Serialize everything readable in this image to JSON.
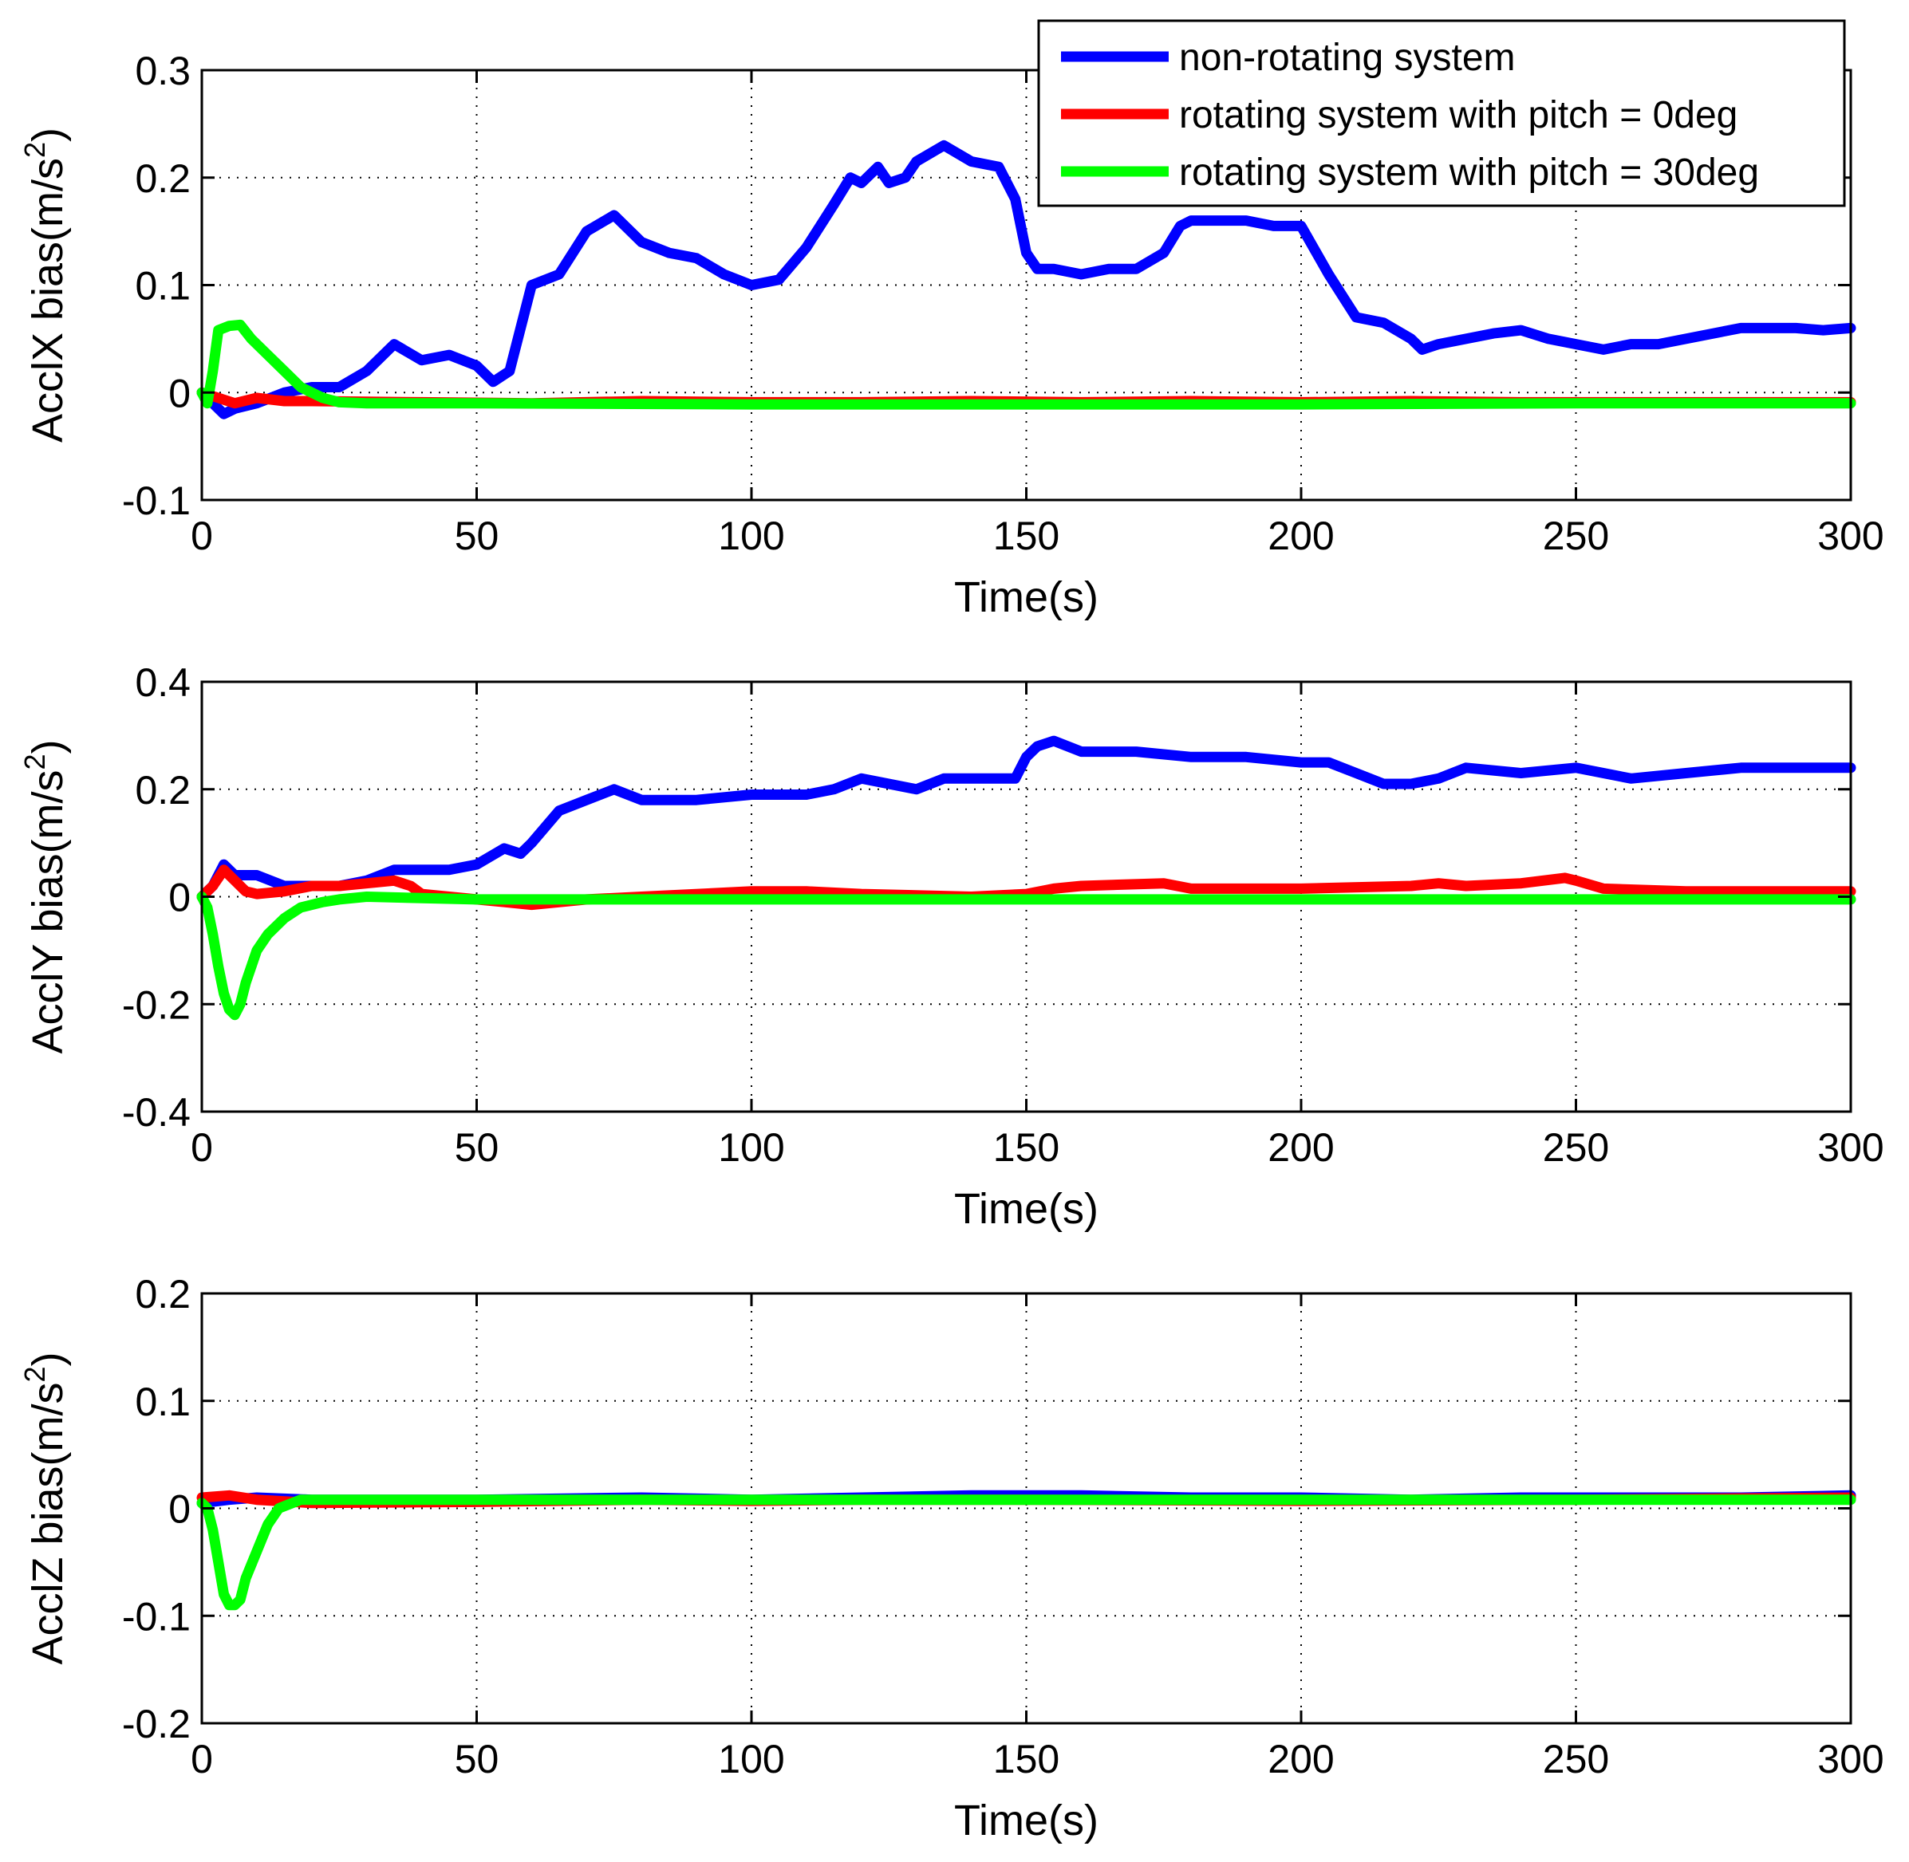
{
  "chart_data": [
    {
      "type": "line",
      "name": "accx",
      "xlabel": "Time(s)",
      "ylabel_main": "AcclX bias(m/s",
      "ylabel_sup": "2",
      "ylabel_close": ")",
      "xlim": [
        0,
        300
      ],
      "ylim": [
        -0.1,
        0.3
      ],
      "xticks": [
        0,
        50,
        100,
        150,
        200,
        250,
        300
      ],
      "xtick_labels": [
        "0",
        "50",
        "100",
        "150",
        "200",
        "250",
        "300"
      ],
      "yticks": [
        -0.1,
        0,
        0.1,
        0.2,
        0.3
      ],
      "ytick_labels": [
        "-0.1",
        "0",
        "0.1",
        "0.2",
        "0.3"
      ],
      "grid": true,
      "legend": {
        "placement": "top-right",
        "entries": [
          "non-rotating system",
          "rotating system with pitch = 0deg",
          "rotating system with pitch = 30deg"
        ]
      },
      "series": [
        {
          "name": "non-rotating system",
          "color": "#0000ff",
          "x": [
            0,
            2,
            4,
            6,
            10,
            15,
            20,
            25,
            30,
            35,
            40,
            45,
            50,
            53,
            56,
            58,
            60,
            65,
            70,
            75,
            80,
            85,
            90,
            95,
            100,
            105,
            110,
            115,
            118,
            120,
            123,
            125,
            128,
            130,
            135,
            140,
            145,
            148,
            150,
            152,
            155,
            160,
            165,
            170,
            175,
            178,
            180,
            185,
            190,
            195,
            200,
            205,
            210,
            215,
            220,
            222,
            225,
            230,
            235,
            240,
            245,
            250,
            255,
            260,
            265,
            270,
            275,
            280,
            285,
            290,
            295,
            300
          ],
          "y": [
            0,
            -0.01,
            -0.02,
            -0.015,
            -0.01,
            0.0,
            0.005,
            0.005,
            0.02,
            0.045,
            0.03,
            0.035,
            0.025,
            0.01,
            0.02,
            0.06,
            0.1,
            0.11,
            0.15,
            0.165,
            0.14,
            0.13,
            0.125,
            0.11,
            0.1,
            0.105,
            0.135,
            0.175,
            0.2,
            0.195,
            0.21,
            0.195,
            0.2,
            0.215,
            0.23,
            0.215,
            0.21,
            0.18,
            0.13,
            0.115,
            0.115,
            0.11,
            0.115,
            0.115,
            0.13,
            0.155,
            0.16,
            0.16,
            0.16,
            0.155,
            0.155,
            0.11,
            0.07,
            0.065,
            0.05,
            0.04,
            0.045,
            0.05,
            0.055,
            0.058,
            0.05,
            0.045,
            0.04,
            0.045,
            0.045,
            0.05,
            0.055,
            0.06,
            0.06,
            0.06,
            0.058,
            0.06
          ]
        },
        {
          "name": "rotating system with pitch = 0deg",
          "color": "#ff0000",
          "x": [
            0,
            3,
            6,
            10,
            15,
            20,
            40,
            60,
            80,
            100,
            120,
            140,
            160,
            180,
            200,
            220,
            240,
            260,
            280,
            300
          ],
          "y": [
            0,
            -0.005,
            -0.01,
            -0.005,
            -0.008,
            -0.008,
            -0.009,
            -0.01,
            -0.008,
            -0.009,
            -0.009,
            -0.008,
            -0.009,
            -0.008,
            -0.009,
            -0.008,
            -0.009,
            -0.009,
            -0.009,
            -0.009
          ]
        },
        {
          "name": "rotating system with pitch = 30deg",
          "color": "#00ff00",
          "x": [
            0,
            1,
            2,
            3,
            5,
            7,
            9,
            12,
            15,
            18,
            22,
            25,
            30,
            50,
            100,
            150,
            200,
            250,
            300
          ],
          "y": [
            0,
            -0.01,
            0.02,
            0.058,
            0.062,
            0.063,
            0.05,
            0.035,
            0.02,
            0.005,
            -0.005,
            -0.009,
            -0.01,
            -0.01,
            -0.011,
            -0.011,
            -0.011,
            -0.01,
            -0.01
          ]
        }
      ]
    },
    {
      "type": "line",
      "name": "accy",
      "xlabel": "Time(s)",
      "ylabel_main": "AcclY bias(m/s",
      "ylabel_sup": "2",
      "ylabel_close": ")",
      "xlim": [
        0,
        300
      ],
      "ylim": [
        -0.4,
        0.4
      ],
      "xticks": [
        0,
        50,
        100,
        150,
        200,
        250,
        300
      ],
      "xtick_labels": [
        "0",
        "50",
        "100",
        "150",
        "200",
        "250",
        "300"
      ],
      "yticks": [
        -0.4,
        -0.2,
        0,
        0.2,
        0.4
      ],
      "ytick_labels": [
        "-0.4",
        "-0.2",
        "0",
        "0.2",
        "0.4"
      ],
      "grid": true,
      "series": [
        {
          "name": "non-rotating system",
          "color": "#0000ff",
          "x": [
            0,
            2,
            4,
            6,
            10,
            15,
            20,
            25,
            30,
            35,
            40,
            45,
            50,
            55,
            58,
            60,
            65,
            70,
            75,
            80,
            90,
            100,
            110,
            115,
            120,
            125,
            130,
            135,
            140,
            148,
            150,
            152,
            155,
            160,
            170,
            180,
            190,
            200,
            205,
            210,
            215,
            220,
            225,
            230,
            240,
            250,
            255,
            260,
            270,
            280,
            290,
            300
          ],
          "y": [
            0,
            0.02,
            0.06,
            0.04,
            0.04,
            0.02,
            0.02,
            0.02,
            0.03,
            0.05,
            0.05,
            0.05,
            0.06,
            0.09,
            0.08,
            0.1,
            0.16,
            0.18,
            0.2,
            0.18,
            0.18,
            0.19,
            0.19,
            0.2,
            0.22,
            0.21,
            0.2,
            0.22,
            0.22,
            0.22,
            0.26,
            0.28,
            0.29,
            0.27,
            0.27,
            0.26,
            0.26,
            0.25,
            0.25,
            0.23,
            0.21,
            0.21,
            0.22,
            0.24,
            0.23,
            0.24,
            0.23,
            0.22,
            0.23,
            0.24,
            0.24,
            0.24
          ]
        },
        {
          "name": "rotating system with pitch = 0deg",
          "color": "#ff0000",
          "x": [
            0,
            2,
            4,
            6,
            8,
            10,
            15,
            20,
            25,
            30,
            35,
            38,
            40,
            45,
            50,
            55,
            60,
            70,
            80,
            100,
            110,
            120,
            140,
            150,
            155,
            160,
            175,
            180,
            200,
            220,
            225,
            230,
            240,
            248,
            250,
            255,
            270,
            300
          ],
          "y": [
            0,
            0.02,
            0.05,
            0.03,
            0.01,
            0.005,
            0.01,
            0.02,
            0.02,
            0.025,
            0.03,
            0.02,
            0.005,
            0.0,
            -0.005,
            -0.01,
            -0.015,
            -0.005,
            0.0,
            0.01,
            0.01,
            0.005,
            0.0,
            0.005,
            0.015,
            0.02,
            0.025,
            0.015,
            0.015,
            0.02,
            0.025,
            0.02,
            0.025,
            0.035,
            0.03,
            0.015,
            0.01,
            0.01
          ]
        },
        {
          "name": "rotating system with pitch = 30deg",
          "color": "#00ff00",
          "x": [
            0,
            1,
            2,
            3,
            4,
            5,
            6,
            7,
            8,
            10,
            12,
            15,
            18,
            22,
            25,
            30,
            50,
            100,
            150,
            200,
            250,
            300
          ],
          "y": [
            0,
            -0.02,
            -0.07,
            -0.13,
            -0.18,
            -0.21,
            -0.22,
            -0.2,
            -0.16,
            -0.1,
            -0.07,
            -0.04,
            -0.02,
            -0.01,
            -0.005,
            0.0,
            -0.005,
            -0.005,
            -0.005,
            -0.005,
            -0.005,
            -0.005
          ]
        }
      ]
    },
    {
      "type": "line",
      "name": "accz",
      "xlabel": "Time(s)",
      "ylabel_main": "AcclZ bias(m/s",
      "ylabel_sup": "2",
      "ylabel_close": ")",
      "xlim": [
        0,
        300
      ],
      "ylim": [
        -0.2,
        0.2
      ],
      "xticks": [
        0,
        50,
        100,
        150,
        200,
        250,
        300
      ],
      "xtick_labels": [
        "0",
        "50",
        "100",
        "150",
        "200",
        "250",
        "300"
      ],
      "yticks": [
        -0.2,
        -0.1,
        0,
        0.1,
        0.2
      ],
      "ytick_labels": [
        "-0.2",
        "-0.1",
        "0",
        "0.1",
        "0.2"
      ],
      "grid": true,
      "series": [
        {
          "name": "non-rotating system",
          "color": "#0000ff",
          "x": [
            0,
            5,
            10,
            20,
            50,
            80,
            100,
            120,
            140,
            160,
            180,
            200,
            220,
            240,
            260,
            280,
            300
          ],
          "y": [
            0.005,
            0.008,
            0.01,
            0.008,
            0.008,
            0.01,
            0.008,
            0.01,
            0.012,
            0.012,
            0.01,
            0.01,
            0.008,
            0.01,
            0.01,
            0.01,
            0.012
          ]
        },
        {
          "name": "rotating system with pitch = 0deg",
          "color": "#ff0000",
          "x": [
            0,
            5,
            10,
            20,
            50,
            80,
            100,
            120,
            150,
            200,
            250,
            300
          ],
          "y": [
            0.01,
            0.012,
            0.008,
            0.005,
            0.006,
            0.008,
            0.007,
            0.008,
            0.008,
            0.007,
            0.008,
            0.01
          ]
        },
        {
          "name": "rotating system with pitch = 30deg",
          "color": "#00ff00",
          "x": [
            0,
            1,
            2,
            3,
            4,
            5,
            6,
            7,
            8,
            10,
            12,
            14,
            18,
            25,
            50,
            100,
            150,
            200,
            250,
            300
          ],
          "y": [
            0.005,
            0.0,
            -0.02,
            -0.05,
            -0.08,
            -0.09,
            -0.09,
            -0.085,
            -0.065,
            -0.04,
            -0.015,
            0.0,
            0.008,
            0.008,
            0.008,
            0.008,
            0.008,
            0.008,
            0.008,
            0.008
          ]
        }
      ]
    }
  ]
}
